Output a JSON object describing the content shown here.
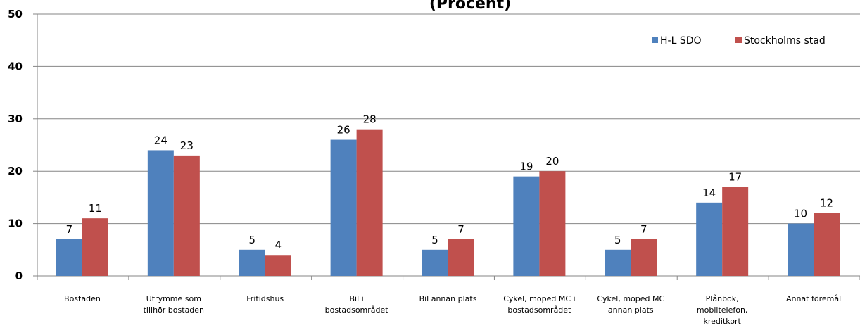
{
  "chart_data": {
    "type": "bar",
    "title": "(Procent)",
    "xlabel": "",
    "ylabel": "",
    "ylim": [
      0,
      50
    ],
    "yticks": [
      "0",
      "10",
      "20",
      "30",
      "40",
      "50"
    ],
    "grid": true,
    "legend_position": "top-right",
    "categories": [
      [
        "Bostaden"
      ],
      [
        "Utrymme som",
        "tillhör bostaden"
      ],
      [
        "Fritidshus"
      ],
      [
        "Bil i",
        "bostadsområdet"
      ],
      [
        "Bil annan plats"
      ],
      [
        "Cykel, moped MC i",
        "bostadsområdet"
      ],
      [
        "Cykel, moped MC",
        "annan plats"
      ],
      [
        "Plånbok,",
        "mobiltelefon,",
        "kreditkort"
      ],
      [
        "Annat föremål"
      ]
    ],
    "series": [
      {
        "name": "H-L SDO",
        "color": "#4f81bd",
        "values": [
          7,
          24,
          5,
          26,
          5,
          19,
          5,
          14,
          10
        ]
      },
      {
        "name": "Stockholms stad",
        "color": "#c0504d",
        "values": [
          11,
          23,
          4,
          28,
          7,
          20,
          7,
          17,
          12
        ]
      }
    ]
  }
}
